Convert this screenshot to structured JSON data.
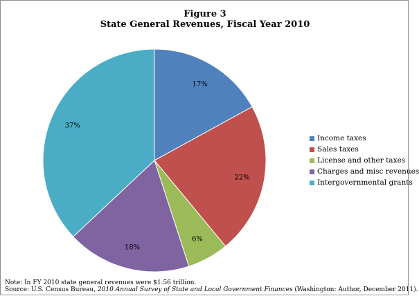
{
  "figure_label": "Figure 3",
  "chart_data": {
    "type": "pie",
    "title": "State General Revenues, Fiscal Year 2010",
    "categories": [
      "Income taxes",
      "Sales taxes",
      "License and other taxes",
      "Charges and misc revenues",
      "Intergovernmental grants"
    ],
    "values": [
      17,
      22,
      6,
      18,
      37
    ],
    "labels": [
      "17%",
      "22%",
      "6%",
      "18%",
      "37%"
    ],
    "colors": [
      "#4f81bd",
      "#c0504d",
      "#9bbb59",
      "#8064a2",
      "#4bacc6"
    ],
    "start_angle_deg": 0,
    "direction": "clockwise",
    "legend_position": "right"
  },
  "notes": {
    "note": "Note: In FY 2010 state general revenues were $1.56 trillion.",
    "source_prefix": "Source: U.S. Census Bureau, ",
    "source_title": "2010 Annual Survey of State and Local Government Finances",
    "source_suffix": " (Washington: Author,   December 2011)."
  }
}
